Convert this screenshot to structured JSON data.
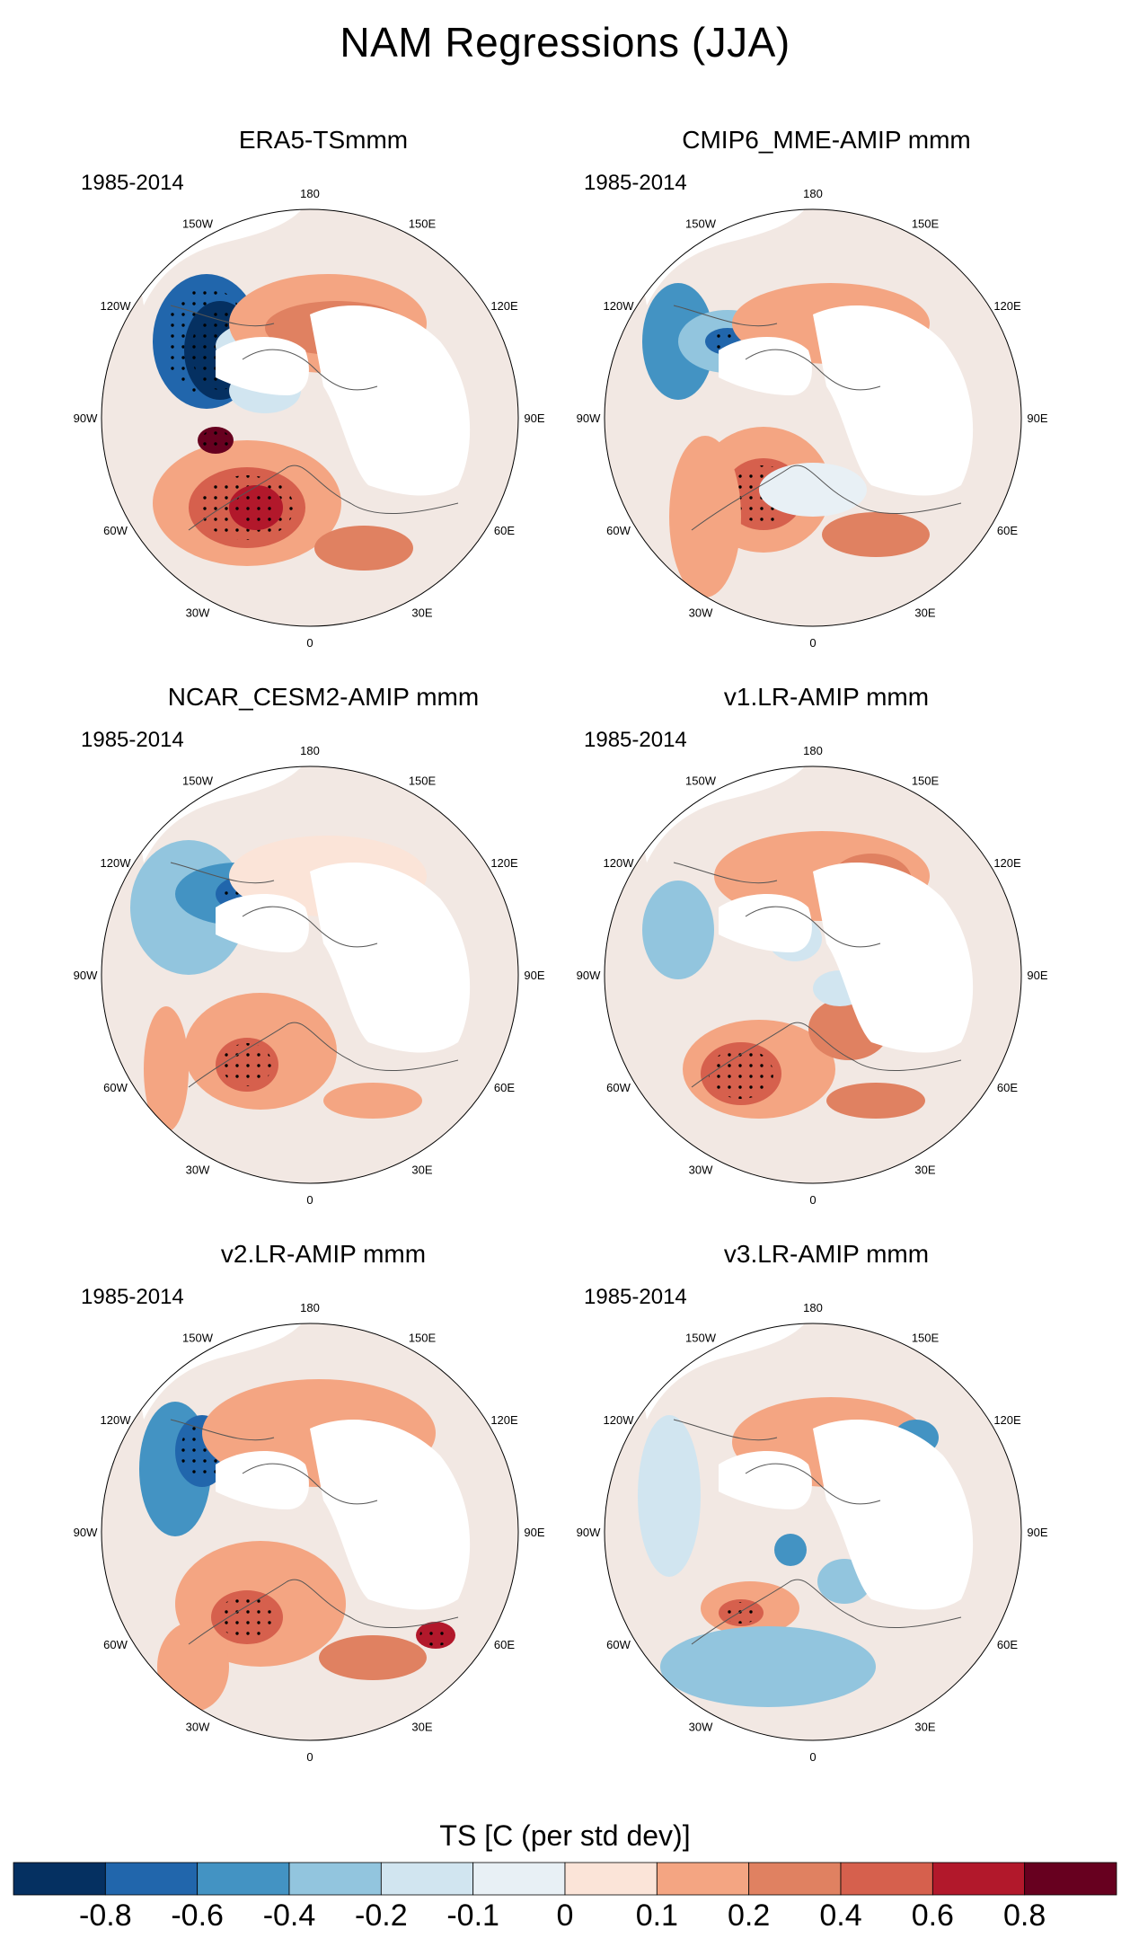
{
  "title": "NAM Regressions (JJA)",
  "period": "1985-2014",
  "longitude_labels": [
    "180",
    "150E",
    "120E",
    "90E",
    "60E",
    "30E",
    "0",
    "30W",
    "60W",
    "90W",
    "120W",
    "150W"
  ],
  "panels": [
    {
      "title": "ERA5-TSmmm",
      "pattern": "era5"
    },
    {
      "title": "CMIP6_MME-AMIP  mmm",
      "pattern": "cmip6"
    },
    {
      "title": "NCAR_CESM2-AMIP  mmm",
      "pattern": "cesm2"
    },
    {
      "title": "v1.LR-AMIP  mmm",
      "pattern": "v1"
    },
    {
      "title": "v2.LR-AMIP  mmm",
      "pattern": "v2"
    },
    {
      "title": "v3.LR-AMIP  mmm",
      "pattern": "v3"
    }
  ],
  "colorbar": {
    "title": "TS [C (per std dev)]",
    "levels": [
      "-0.8",
      "-0.6",
      "-0.4",
      "-0.2",
      "-0.1",
      "0",
      "0.1",
      "0.2",
      "0.4",
      "0.6",
      "0.8"
    ],
    "colors": [
      "#053061",
      "#2166ac",
      "#4393c3",
      "#92c5de",
      "#d1e5f0",
      "#e8f0f5",
      "#fbe4d8",
      "#f4a582",
      "#e08161",
      "#d6604d",
      "#b2182b",
      "#67001f"
    ]
  }
}
